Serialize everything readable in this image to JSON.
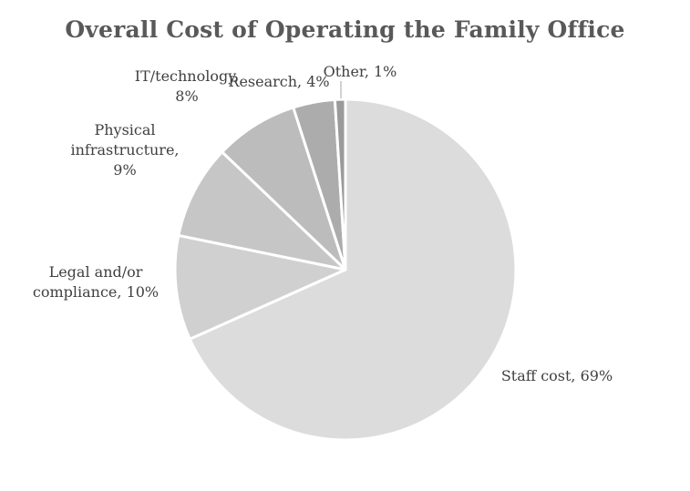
{
  "chart_data": {
    "type": "pie",
    "title": "Overall Cost of Operating the Family Office",
    "slices": [
      {
        "label": "Staff cost",
        "value": 69,
        "value_label": "69%",
        "color": "#dcdcdc"
      },
      {
        "label": "Legal and/or compliance",
        "value": 10,
        "value_label": "10%",
        "color": "#d0d0d0"
      },
      {
        "label": "Physical infrastructure",
        "value": 9,
        "value_label": "9%",
        "color": "#c6c6c6"
      },
      {
        "label": "IT/technology",
        "value": 8,
        "value_label": "8%",
        "color": "#bcbcbc"
      },
      {
        "label": "Research",
        "value": 4,
        "value_label": "4%",
        "color": "#acacac"
      },
      {
        "label": "Other",
        "value": 1,
        "value_label": "1%",
        "color": "#9a9a9a"
      }
    ],
    "data_label_lines": [
      [
        "Staff cost, 69%"
      ],
      [
        "Legal and/or",
        "compliance, 10%"
      ],
      [
        "Physical",
        "infrastructure,",
        "9%"
      ],
      [
        "IT/technology,",
        "8%"
      ],
      [
        "Research, 4%"
      ],
      [
        "Other, 1%"
      ]
    ],
    "start_angle_deg": 0,
    "direction": "clockwise"
  }
}
